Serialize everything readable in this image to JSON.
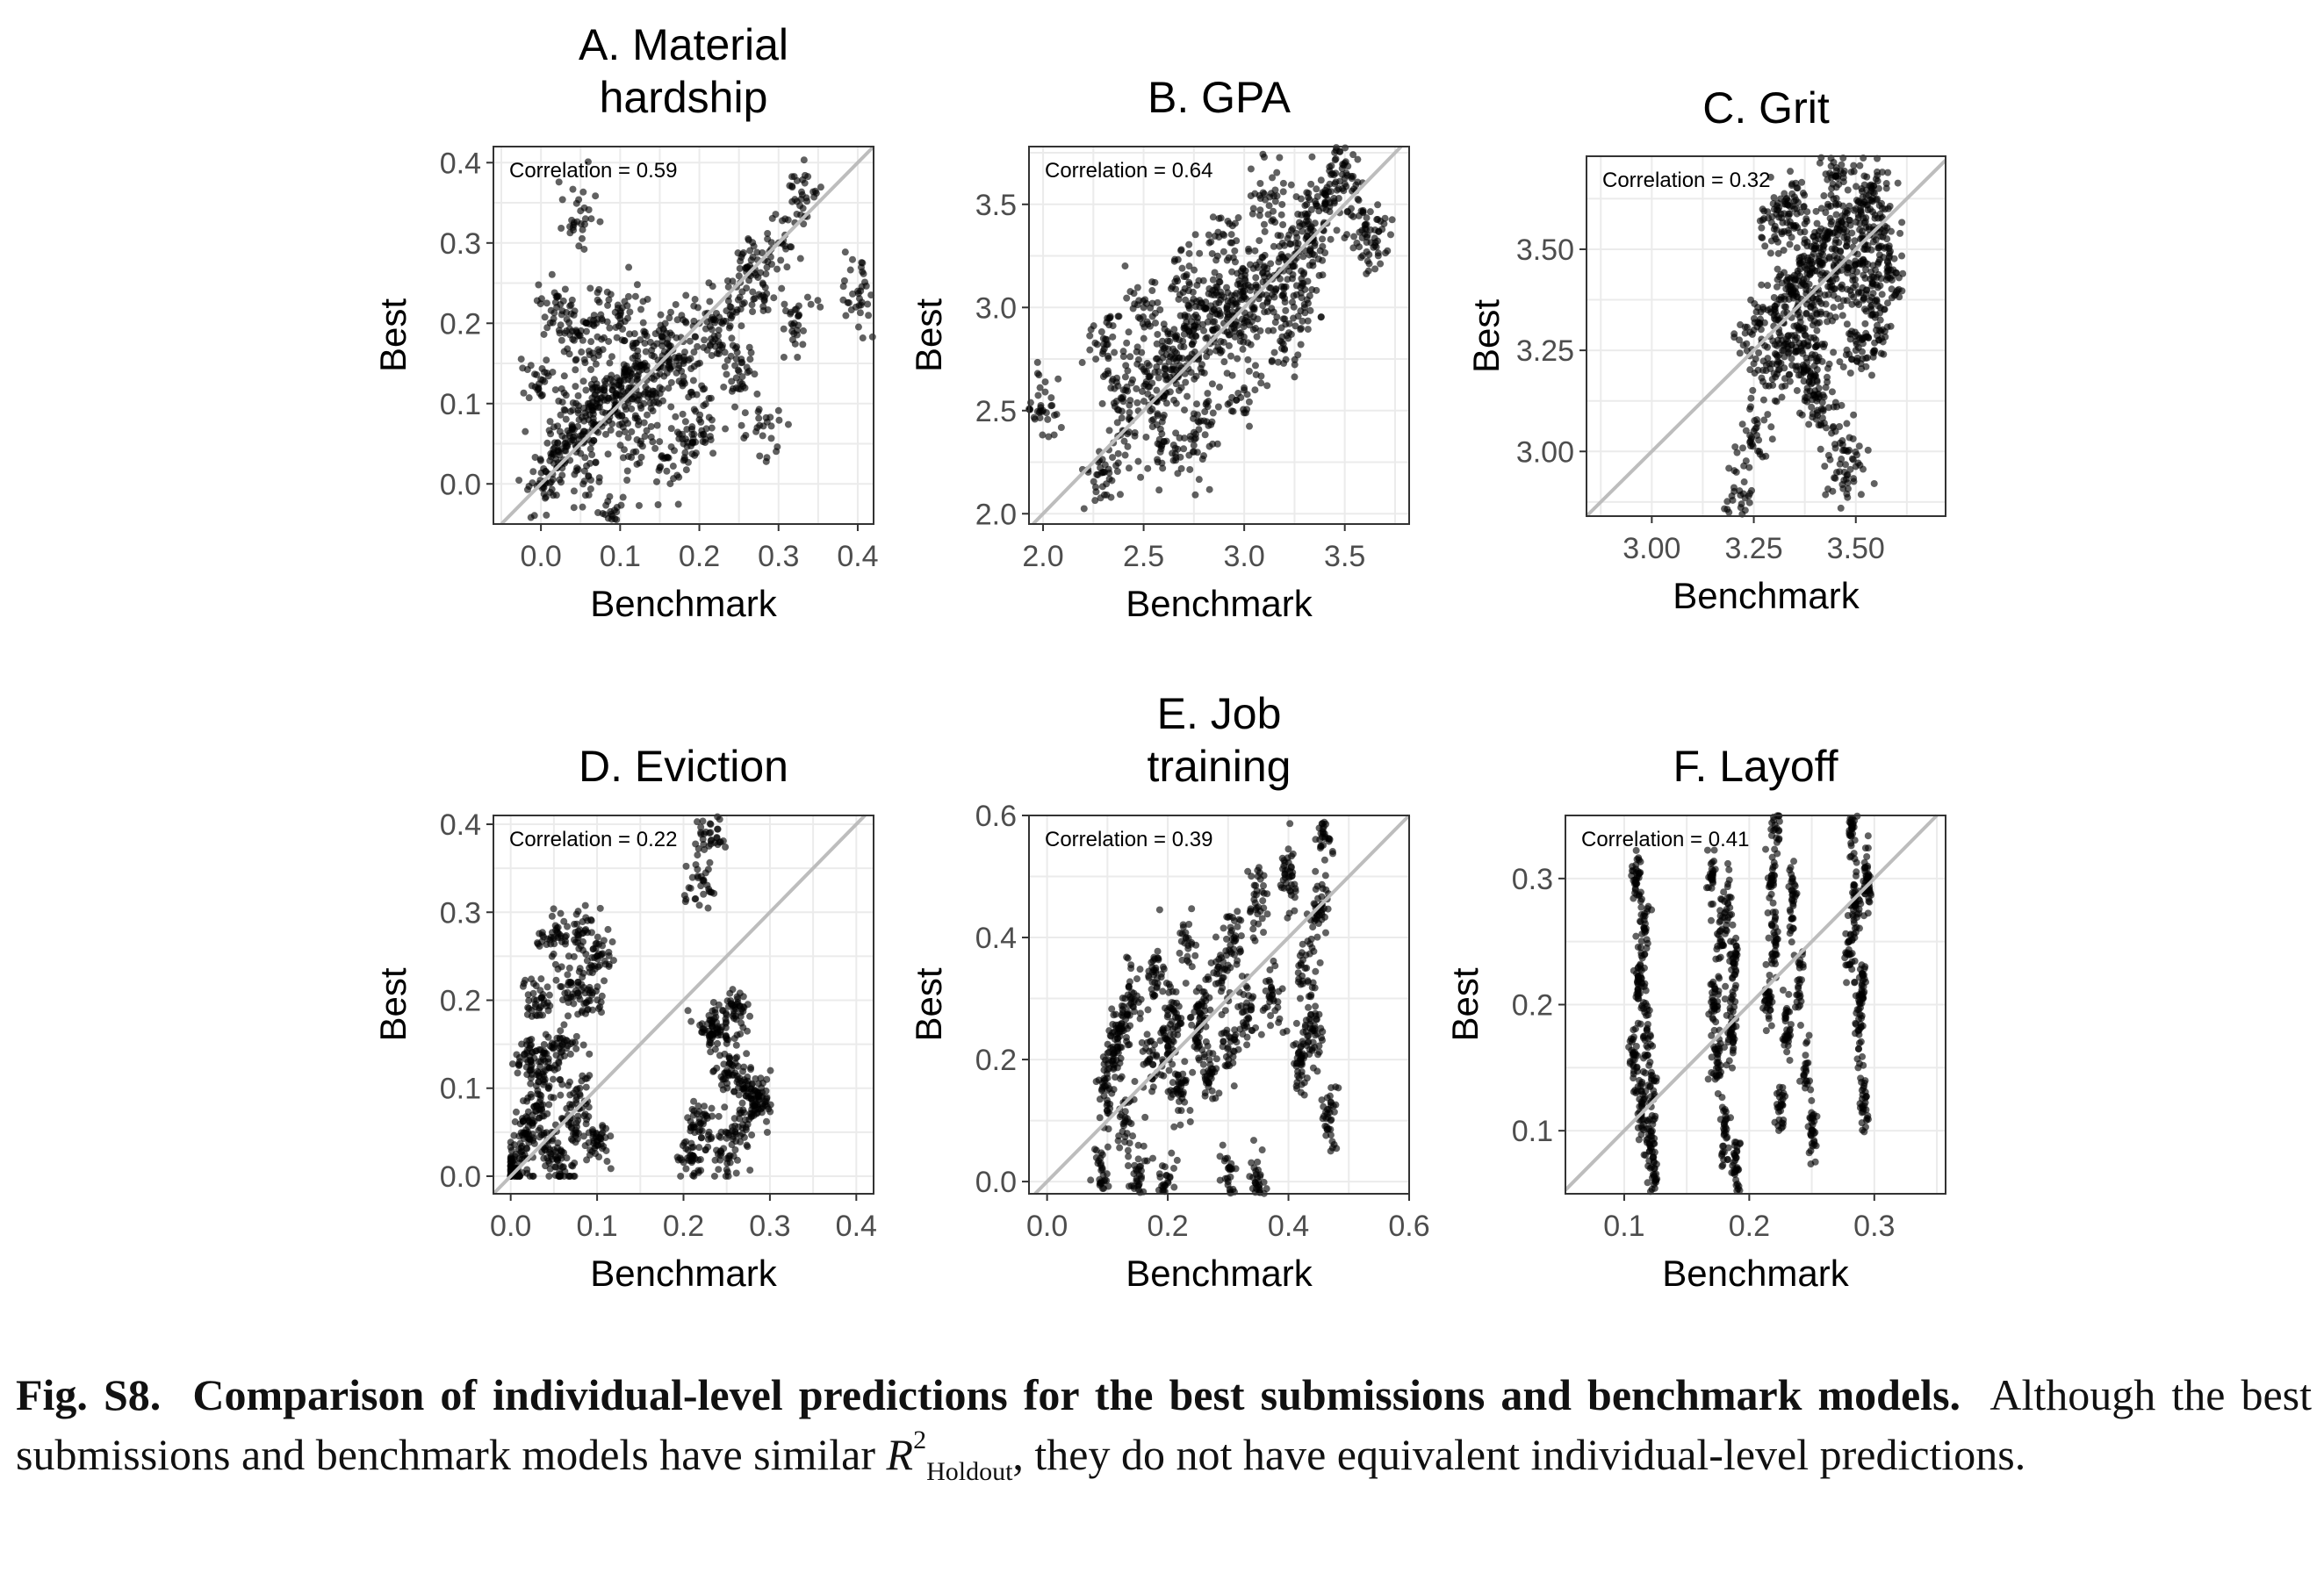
{
  "chart_data": [
    {
      "type": "scatter",
      "title": [
        "A. Material",
        "hardship"
      ],
      "xlabel": "Benchmark",
      "ylabel": "Best",
      "xlim": [
        -0.06,
        0.42
      ],
      "ylim": [
        -0.05,
        0.42
      ],
      "xticks": [
        0.0,
        0.1,
        0.2,
        0.3,
        0.4
      ],
      "xtick_labels": [
        "0.0",
        "0.1",
        "0.2",
        "0.3",
        "0.4"
      ],
      "yticks": [
        0.0,
        0.1,
        0.2,
        0.3,
        0.4
      ],
      "ytick_labels": [
        "0.0",
        "0.1",
        "0.2",
        "0.3",
        "0.4"
      ],
      "correlation_label": "Correlation =  0.59",
      "correlation": 0.59,
      "reference_line": "y = x",
      "grid": true,
      "points": [
        [
          0.005,
          0.0
        ],
        [
          0.02,
          0.02
        ],
        [
          0.03,
          0.05
        ],
        [
          0.04,
          0.07
        ],
        [
          0.05,
          0.06
        ],
        [
          0.06,
          0.08
        ],
        [
          0.07,
          0.1
        ],
        [
          0.08,
          0.12
        ],
        [
          0.09,
          0.09
        ],
        [
          0.1,
          0.11
        ],
        [
          0.11,
          0.13
        ],
        [
          0.12,
          0.15
        ],
        [
          0.13,
          0.1
        ],
        [
          0.14,
          0.16
        ],
        [
          0.15,
          0.12
        ],
        [
          0.16,
          0.18
        ],
        [
          0.18,
          0.15
        ],
        [
          0.2,
          0.2
        ],
        [
          0.22,
          0.18
        ],
        [
          0.24,
          0.22
        ],
        [
          0.26,
          0.27
        ],
        [
          0.28,
          0.25
        ],
        [
          0.3,
          0.3
        ],
        [
          0.33,
          0.36
        ],
        [
          0.4,
          0.24
        ],
        [
          0.05,
          0.34
        ],
        [
          0.02,
          0.22
        ],
        [
          0.04,
          0.18
        ],
        [
          0.07,
          0.2
        ],
        [
          0.1,
          0.21
        ],
        [
          0.12,
          0.04
        ],
        [
          0.15,
          0.02
        ],
        [
          0.18,
          0.05
        ],
        [
          0.2,
          0.08
        ],
        [
          0.25,
          0.14
        ],
        [
          0.28,
          0.06
        ],
        [
          0.32,
          0.2
        ],
        [
          0.09,
          -0.04
        ],
        [
          0.0,
          0.13
        ],
        [
          0.06,
          0.01
        ]
      ]
    },
    {
      "type": "scatter",
      "title": [
        "B. GPA"
      ],
      "xlabel": "Benchmark",
      "ylabel": "Best",
      "xlim": [
        1.93,
        3.82
      ],
      "ylim": [
        1.95,
        3.78
      ],
      "xticks": [
        2.0,
        2.5,
        3.0,
        3.5
      ],
      "xtick_labels": [
        "2.0",
        "2.5",
        "3.0",
        "3.5"
      ],
      "yticks": [
        2.0,
        2.5,
        3.0,
        3.5
      ],
      "ytick_labels": [
        "2.0",
        "2.5",
        "3.0",
        "3.5"
      ],
      "correlation_label": "Correlation =  0.64",
      "correlation": 0.64,
      "reference_line": "y = x",
      "grid": true,
      "points": [
        [
          2.0,
          2.5
        ],
        [
          2.3,
          2.2
        ],
        [
          2.4,
          2.6
        ],
        [
          2.5,
          2.7
        ],
        [
          2.55,
          2.55
        ],
        [
          2.6,
          2.8
        ],
        [
          2.65,
          2.7
        ],
        [
          2.7,
          2.9
        ],
        [
          2.75,
          2.75
        ],
        [
          2.8,
          3.0
        ],
        [
          2.85,
          2.85
        ],
        [
          2.9,
          3.05
        ],
        [
          2.95,
          2.9
        ],
        [
          3.0,
          3.1
        ],
        [
          3.05,
          3.0
        ],
        [
          3.1,
          3.2
        ],
        [
          3.15,
          3.05
        ],
        [
          3.2,
          3.3
        ],
        [
          3.25,
          3.2
        ],
        [
          3.3,
          3.4
        ],
        [
          3.35,
          3.3
        ],
        [
          3.4,
          3.5
        ],
        [
          3.45,
          3.6
        ],
        [
          3.5,
          3.7
        ],
        [
          3.6,
          3.4
        ],
        [
          3.65,
          3.3
        ],
        [
          2.3,
          2.85
        ],
        [
          2.4,
          2.4
        ],
        [
          2.6,
          2.35
        ],
        [
          2.8,
          2.45
        ],
        [
          3.0,
          2.6
        ],
        [
          3.2,
          2.8
        ],
        [
          3.3,
          3.0
        ],
        [
          2.5,
          3.0
        ],
        [
          2.7,
          3.15
        ],
        [
          2.9,
          3.35
        ],
        [
          3.1,
          3.55
        ],
        [
          2.75,
          2.3
        ]
      ]
    },
    {
      "type": "scatter",
      "title": [
        "C. Grit"
      ],
      "xlabel": "Benchmark",
      "ylabel": "Best",
      "xlim": [
        2.84,
        3.72
      ],
      "ylim": [
        2.84,
        3.73
      ],
      "xticks": [
        3.0,
        3.25,
        3.5
      ],
      "xtick_labels": [
        "3.00",
        "3.25",
        "3.50"
      ],
      "yticks": [
        3.0,
        3.25,
        3.5
      ],
      "ytick_labels": [
        "3.00",
        "3.25",
        "3.50"
      ],
      "correlation_label": "Correlation =  0.32",
      "correlation": 0.32,
      "reference_line": "y = x",
      "grid": true,
      "points": [
        [
          3.22,
          2.87
        ],
        [
          3.25,
          3.05
        ],
        [
          3.28,
          3.2
        ],
        [
          3.3,
          3.35
        ],
        [
          3.32,
          3.25
        ],
        [
          3.34,
          3.4
        ],
        [
          3.36,
          3.3
        ],
        [
          3.38,
          3.45
        ],
        [
          3.4,
          3.35
        ],
        [
          3.42,
          3.5
        ],
        [
          3.44,
          3.4
        ],
        [
          3.46,
          3.55
        ],
        [
          3.48,
          3.45
        ],
        [
          3.5,
          3.6
        ],
        [
          3.52,
          3.5
        ],
        [
          3.54,
          3.65
        ],
        [
          3.56,
          3.55
        ],
        [
          3.58,
          3.45
        ],
        [
          3.42,
          3.1
        ],
        [
          3.46,
          2.95
        ],
        [
          3.48,
          3.0
        ],
        [
          3.35,
          3.6
        ],
        [
          3.3,
          3.55
        ],
        [
          3.4,
          3.15
        ],
        [
          3.5,
          3.25
        ],
        [
          3.55,
          3.3
        ],
        [
          3.25,
          3.3
        ],
        [
          3.45,
          3.68
        ],
        [
          3.38,
          3.22
        ],
        [
          3.52,
          3.38
        ]
      ]
    },
    {
      "type": "scatter",
      "title": [
        "D. Eviction"
      ],
      "xlabel": "Benchmark",
      "ylabel": "Best",
      "xlim": [
        -0.02,
        0.42
      ],
      "ylim": [
        -0.02,
        0.41
      ],
      "xticks": [
        0.0,
        0.1,
        0.2,
        0.3,
        0.4
      ],
      "xtick_labels": [
        "0.0",
        "0.1",
        "0.2",
        "0.3",
        "0.4"
      ],
      "yticks": [
        0.0,
        0.1,
        0.2,
        0.3,
        0.4
      ],
      "ytick_labels": [
        "0.0",
        "0.1",
        "0.2",
        "0.3",
        "0.4"
      ],
      "correlation_label": "Correlation =  0.22",
      "correlation": 0.22,
      "reference_line": "y = x",
      "grid": true,
      "points": [
        [
          0.0,
          0.0
        ],
        [
          0.01,
          0.02
        ],
        [
          0.02,
          0.05
        ],
        [
          0.03,
          0.08
        ],
        [
          0.04,
          0.12
        ],
        [
          0.05,
          0.03
        ],
        [
          0.06,
          0.15
        ],
        [
          0.07,
          0.06
        ],
        [
          0.08,
          0.1
        ],
        [
          0.09,
          0.2
        ],
        [
          0.1,
          0.04
        ],
        [
          0.1,
          0.25
        ],
        [
          0.05,
          0.27
        ],
        [
          0.07,
          0.22
        ],
        [
          0.03,
          0.2
        ],
        [
          0.08,
          0.28
        ],
        [
          0.02,
          0.13
        ],
        [
          0.06,
          0.01
        ],
        [
          0.21,
          0.02
        ],
        [
          0.22,
          0.06
        ],
        [
          0.23,
          0.39
        ],
        [
          0.22,
          0.33
        ],
        [
          0.24,
          0.17
        ],
        [
          0.25,
          0.12
        ],
        [
          0.25,
          0.02
        ],
        [
          0.26,
          0.05
        ],
        [
          0.27,
          0.1
        ],
        [
          0.28,
          0.08
        ],
        [
          0.29,
          0.09
        ],
        [
          0.23,
          0.16
        ],
        [
          0.26,
          0.19
        ]
      ]
    },
    {
      "type": "scatter",
      "title": [
        "E. Job",
        "training"
      ],
      "xlabel": "Benchmark",
      "ylabel": "Best",
      "xlim": [
        -0.03,
        0.6
      ],
      "ylim": [
        -0.02,
        0.6
      ],
      "xticks": [
        0.0,
        0.2,
        0.4,
        0.6
      ],
      "xtick_labels": [
        "0.0",
        "0.2",
        "0.4",
        "0.6"
      ],
      "yticks": [
        0.0,
        0.2,
        0.4,
        0.6
      ],
      "ytick_labels": [
        "0.0",
        "0.2",
        "0.4",
        "0.6"
      ],
      "correlation_label": "Correlation =  0.39",
      "correlation": 0.39,
      "reference_line": "y = x",
      "grid": true,
      "points": [
        [
          0.09,
          0.0
        ],
        [
          0.1,
          0.15
        ],
        [
          0.11,
          0.2
        ],
        [
          0.12,
          0.25
        ],
        [
          0.13,
          0.1
        ],
        [
          0.14,
          0.3
        ],
        [
          0.17,
          0.2
        ],
        [
          0.18,
          0.35
        ],
        [
          0.2,
          0.22
        ],
        [
          0.21,
          0.28
        ],
        [
          0.22,
          0.15
        ],
        [
          0.23,
          0.4
        ],
        [
          0.25,
          0.25
        ],
        [
          0.26,
          0.3
        ],
        [
          0.27,
          0.18
        ],
        [
          0.29,
          0.35
        ],
        [
          0.3,
          0.22
        ],
        [
          0.31,
          0.4
        ],
        [
          0.33,
          0.28
        ],
        [
          0.35,
          0.45
        ],
        [
          0.37,
          0.3
        ],
        [
          0.4,
          0.5
        ],
        [
          0.42,
          0.2
        ],
        [
          0.43,
          0.35
        ],
        [
          0.44,
          0.25
        ],
        [
          0.45,
          0.45
        ],
        [
          0.46,
          0.57
        ],
        [
          0.47,
          0.1
        ],
        [
          0.2,
          0.0
        ],
        [
          0.3,
          0.0
        ],
        [
          0.35,
          0.0
        ],
        [
          0.15,
          0.0
        ]
      ]
    },
    {
      "type": "scatter",
      "title": [
        "F. Layoff"
      ],
      "xlabel": "Benchmark",
      "ylabel": "Best",
      "xlim": [
        0.053,
        0.357
      ],
      "ylim": [
        0.05,
        0.35
      ],
      "xticks": [
        0.1,
        0.2,
        0.3
      ],
      "xtick_labels": [
        "0.1",
        "0.2",
        "0.3"
      ],
      "yticks": [
        0.1,
        0.2,
        0.3
      ],
      "ytick_labels": [
        "0.1",
        "0.2",
        "0.3"
      ],
      "correlation_label": "Correlation =  0.41",
      "correlation": 0.41,
      "reference_line": "y = x",
      "grid": true,
      "points": [
        [
          0.108,
          0.16
        ],
        [
          0.11,
          0.3
        ],
        [
          0.112,
          0.22
        ],
        [
          0.114,
          0.12
        ],
        [
          0.116,
          0.26
        ],
        [
          0.118,
          0.18
        ],
        [
          0.12,
          0.09
        ],
        [
          0.122,
          0.14
        ],
        [
          0.124,
          0.07
        ],
        [
          0.17,
          0.3
        ],
        [
          0.172,
          0.2
        ],
        [
          0.175,
          0.15
        ],
        [
          0.178,
          0.25
        ],
        [
          0.18,
          0.1
        ],
        [
          0.183,
          0.28
        ],
        [
          0.186,
          0.18
        ],
        [
          0.188,
          0.23
        ],
        [
          0.19,
          0.07
        ],
        [
          0.215,
          0.2
        ],
        [
          0.218,
          0.3
        ],
        [
          0.22,
          0.25
        ],
        [
          0.222,
          0.34
        ],
        [
          0.225,
          0.12
        ],
        [
          0.23,
          0.18
        ],
        [
          0.235,
          0.28
        ],
        [
          0.24,
          0.22
        ],
        [
          0.245,
          0.15
        ],
        [
          0.25,
          0.1
        ],
        [
          0.28,
          0.24
        ],
        [
          0.282,
          0.34
        ],
        [
          0.285,
          0.28
        ],
        [
          0.288,
          0.18
        ],
        [
          0.29,
          0.21
        ],
        [
          0.292,
          0.12
        ],
        [
          0.294,
          0.3
        ]
      ]
    }
  ],
  "caption": {
    "label": "Fig. S8.",
    "heading": "Comparison of individual-level predictions for the best submissions and benchmark models.",
    "text_before": "Although the best submissions and benchmark models have similar",
    "symbol_base": "R",
    "symbol_sup": "2",
    "symbol_sub": "Holdout",
    "text_after": ", they do not have equivalent individual-level predictions."
  }
}
